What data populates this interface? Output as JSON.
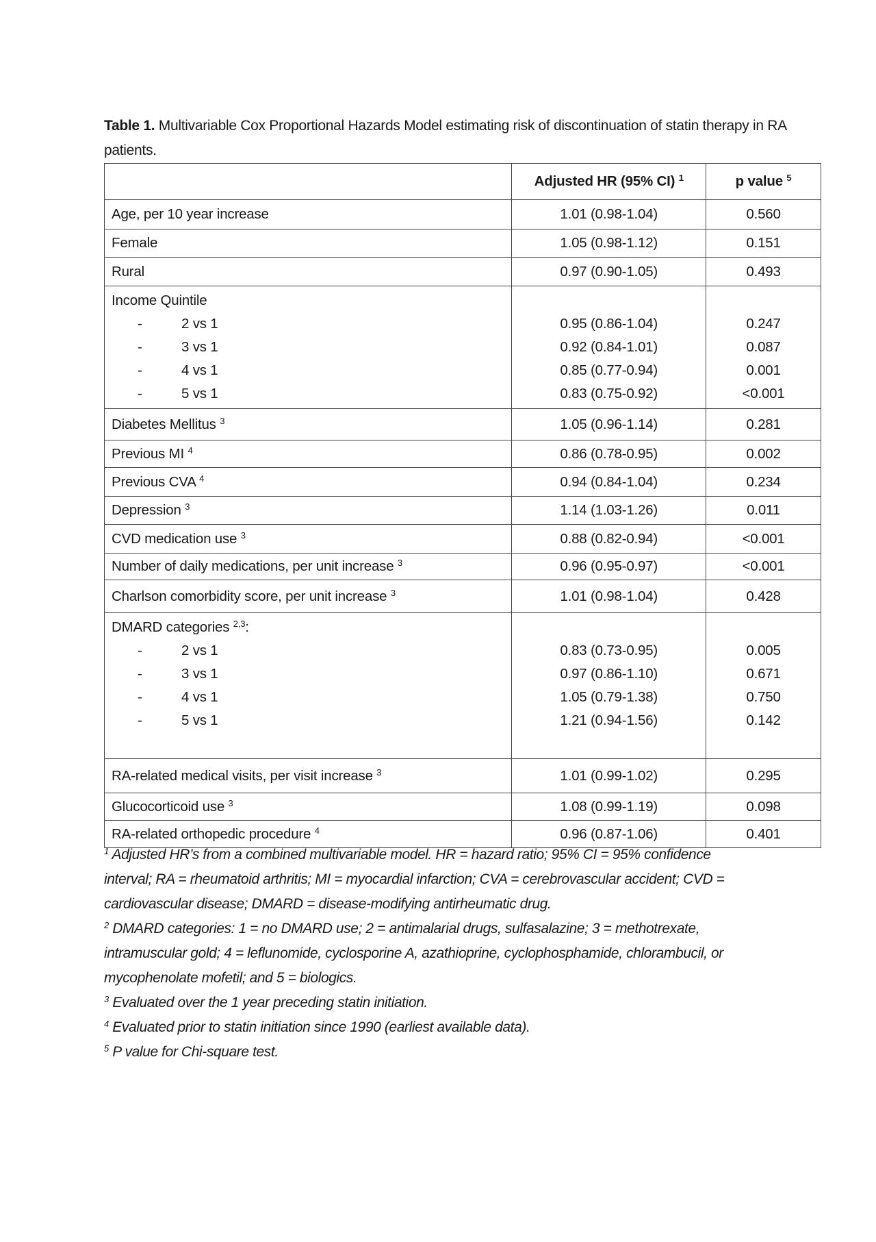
{
  "title": {
    "label": "Table 1.",
    "text": "Multivariable Cox Proportional Hazards Model estimating risk of discontinuation of statin therapy in RA patients."
  },
  "table": {
    "headers": [
      {
        "label": "",
        "sup": ""
      },
      {
        "label": "Adjusted HR (95% CI)",
        "sup": "1"
      },
      {
        "label": "p value",
        "sup": "5"
      }
    ],
    "rows": [
      {
        "label": "Age, per 10 year increase",
        "sup": "",
        "hr": "1.01 (0.98-1.04)",
        "p": "0.560"
      },
      {
        "label": "Female",
        "sup": "",
        "hr": "1.05 (0.98-1.12)",
        "p": "0.151"
      },
      {
        "label": "Rural",
        "sup": "",
        "hr": "0.97 (0.90-1.05)",
        "p": "0.493"
      },
      {
        "label": "Income Quintile",
        "sup": "",
        "subrows": [
          {
            "label": "2 vs 1",
            "hr": "0.95 (0.86-1.04)",
            "p": "0.247"
          },
          {
            "label": "3 vs 1",
            "hr": "0.92 (0.84-1.01)",
            "p": "0.087"
          },
          {
            "label": "4 vs 1",
            "hr": "0.85 (0.77-0.94)",
            "p": "0.001"
          },
          {
            "label": "5 vs 1",
            "hr": "0.83 (0.75-0.92)",
            "p": "<0.001"
          }
        ]
      },
      {
        "label": "Diabetes Mellitus",
        "sup": "3",
        "hr": "1.05 (0.96-1.14)",
        "p": "0.281"
      },
      {
        "label": "Previous MI",
        "sup": "4",
        "hr": "0.86 (0.78-0.95)",
        "p": "0.002"
      },
      {
        "label": "Previous CVA",
        "sup": "4",
        "hr": "0.94 (0.84-1.04)",
        "p": "0.234"
      },
      {
        "label": "Depression",
        "sup": "3",
        "hr": "1.14 (1.03-1.26)",
        "p": "0.011"
      },
      {
        "label": "CVD medication use",
        "sup": "3",
        "hr": "0.88 (0.82-0.94)",
        "p": "<0.001"
      },
      {
        "label": "Number of daily medications, per unit increase",
        "sup": "3",
        "hr": "0.96 (0.95-0.97)",
        "p": "<0.001"
      },
      {
        "label": "Charlson comorbidity score, per unit increase",
        "sup": "3",
        "hr": "1.01 (0.98-1.04)",
        "p": "0.428"
      },
      {
        "label": "DMARD categories",
        "sup": "2,3",
        "suffix": ":",
        "subrows": [
          {
            "label": "2 vs 1",
            "hr": "0.83 (0.73-0.95)",
            "p": "0.005"
          },
          {
            "label": "3 vs 1",
            "hr": "0.97 (0.86-1.10)",
            "p": "0.671"
          },
          {
            "label": "4 vs 1",
            "hr": "1.05 (0.79-1.38)",
            "p": "0.750"
          },
          {
            "label": "5 vs 1",
            "hr": "1.21 (0.94-1.56)",
            "p": "0.142"
          }
        ]
      },
      {
        "label": "RA-related medical visits, per visit increase",
        "sup": "3",
        "hr": "1.01 (0.99-1.02)",
        "p": "0.295"
      },
      {
        "label": "Glucocorticoid use",
        "sup": "3",
        "hr": "1.08 (0.99-1.19)",
        "p": "0.098"
      },
      {
        "label": "RA-related orthopedic procedure",
        "sup": "4",
        "hr": "0.96 (0.87-1.06)",
        "p": "0.401"
      }
    ]
  },
  "footnotes": [
    {
      "mark": "1",
      "text": "Adjusted HR’s from a combined multivariable model. HR = hazard ratio; 95% CI = 95% confidence interval; RA = rheumatoid arthritis; MI = myocardial infarction; CVA = cerebrovascular accident; CVD = cardiovascular disease; DMARD = disease-modifying antirheumatic drug."
    },
    {
      "mark": "2",
      "text": "DMARD categories: 1 = no DMARD use; 2 = antimalarial drugs, sulfasalazine; 3 = methotrexate, intramuscular gold; 4 = leflunomide, cyclosporine A, azathioprine, cyclophosphamide, chlorambucil, or mycophenolate mofetil; and 5 = biologics."
    },
    {
      "mark": "3",
      "text": "Evaluated over the 1 year preceding statin initiation."
    },
    {
      "mark": "4",
      "text": "Evaluated prior to statin initiation since 1990 (earliest available data)."
    },
    {
      "mark": "5",
      "text": "P value for Chi-square test."
    }
  ]
}
